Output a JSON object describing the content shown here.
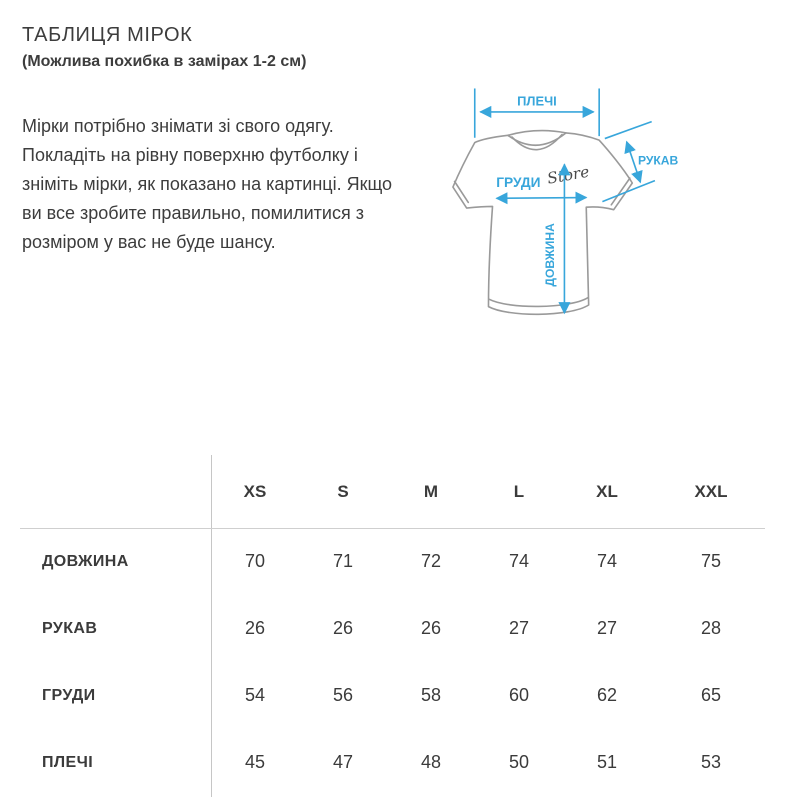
{
  "colors": {
    "accent_blue": "#38a6db",
    "shirt_outline": "#9a9a9a",
    "text": "#3b3b3b",
    "divider": "#c6c6c6"
  },
  "header": {
    "title": "ТАБЛИЦЯ МІРОК",
    "subtitle": "(Можлива похибка в замірах 1-2 см)"
  },
  "instructions": "Мірки потрібно знімати зі свого одягу. Покладіть на рівну поверхню футболку і зніміть мірки, як показано на картинці. Якщо ви все зробите правильно, помилитися з розміром у вас не буде шансу.",
  "diagram": {
    "labels": {
      "shoulders": "ПЛЕЧІ",
      "sleeve": "РУКАВ",
      "chest": "ГРУДИ",
      "length": "ДОВЖИНА"
    },
    "logo": "Store"
  },
  "size_table": {
    "columns": [
      "XS",
      "S",
      "M",
      "L",
      "XL",
      "XXL"
    ],
    "rows": [
      {
        "label": "ДОВЖИНА",
        "values": [
          70,
          71,
          72,
          74,
          74,
          75
        ]
      },
      {
        "label": "РУКАВ",
        "values": [
          26,
          26,
          26,
          27,
          27,
          28
        ]
      },
      {
        "label": "ГРУДИ",
        "values": [
          54,
          56,
          58,
          60,
          62,
          65
        ]
      },
      {
        "label": "ПЛЕЧІ",
        "values": [
          45,
          47,
          48,
          50,
          51,
          53
        ]
      }
    ]
  }
}
